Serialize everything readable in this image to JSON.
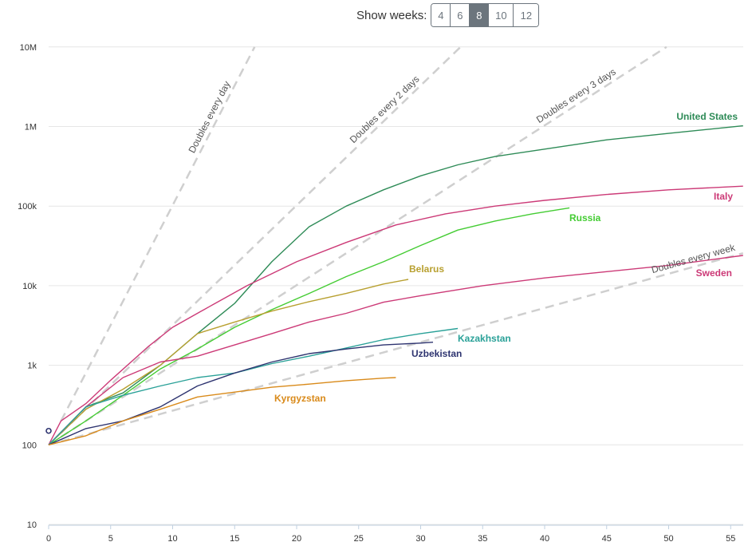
{
  "controls": {
    "label": "Show weeks:",
    "options": [
      "4",
      "6",
      "8",
      "10",
      "12"
    ],
    "selected": "8"
  },
  "chart_data": {
    "type": "line",
    "y_scale": "log",
    "xlim": [
      0,
      56
    ],
    "ylim": [
      10,
      10000000
    ],
    "grid": "horizontal",
    "x_ticks": [
      "0",
      "5",
      "10",
      "15",
      "20",
      "25",
      "30",
      "35",
      "40",
      "45",
      "50",
      "55"
    ],
    "y_ticks": [
      "10",
      "100",
      "1k",
      "10k",
      "100k",
      "1M",
      "10M"
    ],
    "reference_lines": [
      {
        "label": "Doubles every day",
        "doubling_days": 1
      },
      {
        "label": "Doubles every 2 days",
        "doubling_days": 2
      },
      {
        "label": "Doubles every 3 days",
        "doubling_days": 3
      },
      {
        "label": "Doubles every week",
        "doubling_days": 7
      }
    ],
    "series": [
      {
        "name": "United States",
        "color": "#2e8b57",
        "x": [
          0,
          3,
          6,
          9,
          12,
          15,
          18,
          21,
          24,
          27,
          30,
          33,
          36,
          40,
          45,
          50,
          56
        ],
        "y": [
          100,
          300,
          450,
          1000,
          2500,
          6000,
          20000,
          55000,
          100000,
          160000,
          240000,
          330000,
          420000,
          520000,
          680000,
          820000,
          1020000
        ]
      },
      {
        "name": "Italy",
        "color": "#cc3a77",
        "x": [
          0,
          1,
          3,
          5,
          8,
          10,
          13,
          16,
          20,
          24,
          28,
          32,
          36,
          40,
          45,
          50,
          56
        ],
        "y": [
          100,
          200,
          330,
          650,
          1700,
          3000,
          5500,
          10000,
          20000,
          35000,
          58000,
          80000,
          100000,
          118000,
          140000,
          160000,
          178000
        ]
      },
      {
        "name": "Russia",
        "color": "#44cc33",
        "x": [
          0,
          3,
          6,
          9,
          12,
          15,
          18,
          21,
          24,
          27,
          30,
          33,
          36,
          39,
          42
        ],
        "y": [
          100,
          200,
          420,
          900,
          1600,
          3000,
          5000,
          8000,
          13000,
          20000,
          32000,
          50000,
          65000,
          80000,
          95000
        ]
      },
      {
        "name": "Belarus",
        "color": "#b8a030",
        "x": [
          0,
          3,
          6,
          9,
          12,
          15,
          18,
          21,
          24,
          27,
          29
        ],
        "y": [
          100,
          280,
          500,
          1000,
          2500,
          3500,
          4800,
          6300,
          8000,
          10500,
          12000
        ]
      },
      {
        "name": "Sweden",
        "color": "#cc3a77",
        "x": [
          0,
          3,
          6,
          9,
          12,
          15,
          18,
          21,
          24,
          27,
          30,
          35,
          40,
          45,
          50,
          56
        ],
        "y": [
          100,
          300,
          700,
          1100,
          1300,
          1800,
          2500,
          3500,
          4500,
          6200,
          7500,
          10000,
          12500,
          15000,
          18000,
          24000
        ]
      },
      {
        "name": "Kazakhstan",
        "color": "#2aa198",
        "x": [
          0,
          3,
          6,
          9,
          12,
          15,
          18,
          21,
          24,
          27,
          30,
          33
        ],
        "y": [
          100,
          300,
          420,
          550,
          700,
          800,
          1050,
          1300,
          1650,
          2100,
          2500,
          2900
        ]
      },
      {
        "name": "Uzbekistan",
        "color": "#2e3470",
        "x": [
          0,
          3,
          6,
          9,
          12,
          15,
          18,
          21,
          24,
          27,
          30,
          31
        ],
        "y": [
          100,
          160,
          200,
          300,
          550,
          800,
          1100,
          1400,
          1600,
          1800,
          1900,
          1950
        ]
      },
      {
        "name": "Kyrgyzstan",
        "color": "#d98a1a",
        "x": [
          0,
          3,
          6,
          9,
          12,
          15,
          18,
          21,
          24,
          27,
          28
        ],
        "y": [
          100,
          130,
          200,
          280,
          400,
          460,
          530,
          580,
          640,
          690,
          700
        ]
      }
    ]
  }
}
